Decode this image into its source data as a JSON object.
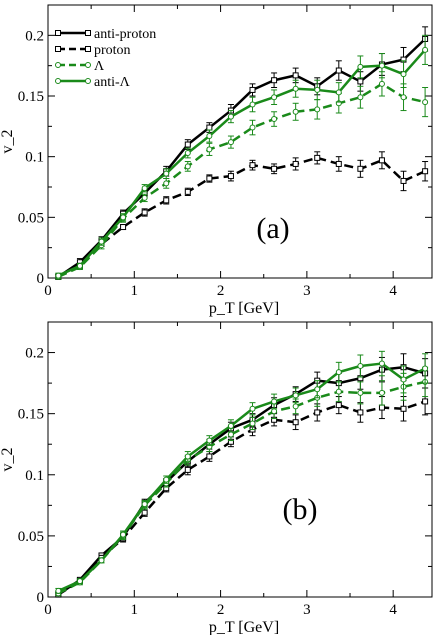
{
  "chart_data": [
    {
      "type": "line",
      "panel_label": "(a)",
      "xlabel": "p_T [GeV]",
      "ylabel": "v_2",
      "xlim": [
        0,
        4.45
      ],
      "ylim": [
        0,
        0.225
      ],
      "x_ticks": [
        0,
        1,
        2,
        3,
        4
      ],
      "x_tick_labels": [
        "0",
        "1",
        "2",
        "3",
        "4"
      ],
      "y_ticks": [
        0,
        0.05,
        0.1,
        0.15,
        0.2
      ],
      "y_tick_labels": [
        "0",
        "0.05",
        "0.1",
        "0.15",
        "0.2"
      ],
      "legend": "top-left",
      "series": [
        {
          "name": "anti-proton",
          "color": "#000000",
          "dash": "solid",
          "marker": "square",
          "x": [
            0.12,
            0.37,
            0.62,
            0.87,
            1.12,
            1.37,
            1.62,
            1.87,
            2.12,
            2.37,
            2.62,
            2.87,
            3.12,
            3.37,
            3.62,
            3.87,
            4.12,
            4.37
          ],
          "y": [
            0.001,
            0.013,
            0.031,
            0.053,
            0.07,
            0.088,
            0.11,
            0.124,
            0.138,
            0.155,
            0.163,
            0.167,
            0.158,
            0.171,
            0.162,
            0.176,
            0.18,
            0.197
          ],
          "err": [
            0.002,
            0.003,
            0.003,
            0.003,
            0.003,
            0.004,
            0.004,
            0.004,
            0.005,
            0.005,
            0.006,
            0.006,
            0.007,
            0.008,
            0.008,
            0.009,
            0.01,
            0.01
          ]
        },
        {
          "name": "proton",
          "color": "#000000",
          "dash": "dashed",
          "marker": "square",
          "x": [
            0.12,
            0.37,
            0.62,
            0.87,
            1.12,
            1.37,
            1.62,
            1.87,
            2.12,
            2.37,
            2.62,
            2.87,
            3.12,
            3.37,
            3.62,
            3.87,
            4.12,
            4.37
          ],
          "y": [
            0.001,
            0.01,
            0.028,
            0.042,
            0.054,
            0.064,
            0.071,
            0.082,
            0.084,
            0.093,
            0.09,
            0.094,
            0.099,
            0.094,
            0.09,
            0.097,
            0.08,
            0.088
          ],
          "err": [
            0.002,
            0.002,
            0.002,
            0.002,
            0.003,
            0.003,
            0.003,
            0.003,
            0.004,
            0.004,
            0.004,
            0.005,
            0.005,
            0.006,
            0.007,
            0.007,
            0.008,
            0.008
          ]
        },
        {
          "name": "Λ",
          "color": "#1a8a1a",
          "dash": "dashed",
          "marker": "circle",
          "x": [
            0.12,
            0.37,
            0.62,
            0.87,
            1.12,
            1.37,
            1.62,
            1.87,
            2.12,
            2.37,
            2.62,
            2.87,
            3.12,
            3.37,
            3.62,
            3.87,
            4.12,
            4.37
          ],
          "y": [
            0.001,
            0.009,
            0.027,
            0.049,
            0.066,
            0.078,
            0.092,
            0.106,
            0.112,
            0.124,
            0.131,
            0.137,
            0.139,
            0.144,
            0.149,
            0.16,
            0.149,
            0.145
          ],
          "err": [
            0.002,
            0.002,
            0.003,
            0.003,
            0.003,
            0.004,
            0.004,
            0.005,
            0.005,
            0.006,
            0.006,
            0.007,
            0.008,
            0.008,
            0.009,
            0.01,
            0.011,
            0.012
          ]
        },
        {
          "name": "anti-Λ",
          "color": "#1a8a1a",
          "dash": "solid",
          "marker": "circle",
          "x": [
            0.12,
            0.37,
            0.62,
            0.87,
            1.12,
            1.37,
            1.62,
            1.87,
            2.12,
            2.37,
            2.62,
            2.87,
            3.12,
            3.37,
            3.62,
            3.87,
            4.12,
            4.37
          ],
          "y": [
            0.002,
            0.01,
            0.03,
            0.05,
            0.074,
            0.086,
            0.103,
            0.117,
            0.133,
            0.143,
            0.149,
            0.156,
            0.155,
            0.153,
            0.174,
            0.175,
            0.168,
            0.188
          ],
          "err": [
            0.002,
            0.002,
            0.003,
            0.003,
            0.003,
            0.004,
            0.004,
            0.005,
            0.005,
            0.006,
            0.006,
            0.007,
            0.008,
            0.008,
            0.009,
            0.01,
            0.011,
            0.012
          ]
        }
      ]
    },
    {
      "type": "line",
      "panel_label": "(b)",
      "xlabel": "p_T [GeV]",
      "ylabel": "v_2",
      "xlim": [
        0,
        4.45
      ],
      "ylim": [
        0,
        0.225
      ],
      "x_ticks": [
        0,
        1,
        2,
        3,
        4
      ],
      "x_tick_labels": [
        "0",
        "1",
        "2",
        "3",
        "4"
      ],
      "y_ticks": [
        0,
        0.05,
        0.1,
        0.15,
        0.2
      ],
      "y_tick_labels": [
        "0",
        "0.05",
        "0.1",
        "0.15",
        "0.2"
      ],
      "series": [
        {
          "name": "anti-proton",
          "color": "#000000",
          "dash": "solid",
          "marker": "square",
          "x": [
            0.12,
            0.37,
            0.62,
            0.87,
            1.12,
            1.37,
            1.62,
            1.87,
            2.12,
            2.37,
            2.62,
            2.87,
            3.12,
            3.37,
            3.62,
            3.87,
            4.12,
            4.37
          ],
          "y": [
            0.002,
            0.014,
            0.034,
            0.049,
            0.077,
            0.094,
            0.111,
            0.125,
            0.138,
            0.145,
            0.157,
            0.166,
            0.177,
            0.175,
            0.179,
            0.186,
            0.188,
            0.183
          ],
          "err": [
            0.002,
            0.002,
            0.002,
            0.003,
            0.003,
            0.003,
            0.004,
            0.004,
            0.005,
            0.005,
            0.006,
            0.006,
            0.007,
            0.008,
            0.009,
            0.01,
            0.011,
            0.012
          ]
        },
        {
          "name": "proton",
          "color": "#000000",
          "dash": "dashed",
          "marker": "square",
          "x": [
            0.12,
            0.37,
            0.62,
            0.87,
            1.12,
            1.37,
            1.62,
            1.87,
            2.12,
            2.37,
            2.62,
            2.87,
            3.12,
            3.37,
            3.62,
            3.87,
            4.12,
            4.37
          ],
          "y": [
            0.002,
            0.013,
            0.032,
            0.048,
            0.069,
            0.089,
            0.104,
            0.115,
            0.127,
            0.137,
            0.145,
            0.143,
            0.151,
            0.157,
            0.151,
            0.155,
            0.154,
            0.16
          ],
          "err": [
            0.002,
            0.002,
            0.002,
            0.003,
            0.003,
            0.003,
            0.004,
            0.004,
            0.004,
            0.005,
            0.005,
            0.006,
            0.007,
            0.007,
            0.008,
            0.009,
            0.01,
            0.011
          ]
        },
        {
          "name": "Λ",
          "color": "#1a8a1a",
          "dash": "dashed",
          "marker": "circle",
          "x": [
            0.12,
            0.37,
            0.62,
            0.87,
            1.12,
            1.37,
            1.62,
            1.87,
            2.12,
            2.37,
            2.62,
            2.87,
            3.12,
            3.37,
            3.62,
            3.87,
            4.12,
            4.37
          ],
          "y": [
            0.003,
            0.012,
            0.03,
            0.05,
            0.075,
            0.093,
            0.112,
            0.123,
            0.133,
            0.142,
            0.152,
            0.156,
            0.163,
            0.168,
            0.167,
            0.167,
            0.172,
            0.176
          ],
          "err": [
            0.002,
            0.002,
            0.002,
            0.003,
            0.003,
            0.003,
            0.004,
            0.004,
            0.005,
            0.005,
            0.006,
            0.006,
            0.007,
            0.008,
            0.009,
            0.01,
            0.011,
            0.012
          ]
        },
        {
          "name": "anti-Λ",
          "color": "#1a8a1a",
          "dash": "solid",
          "marker": "circle",
          "x": [
            0.12,
            0.37,
            0.62,
            0.87,
            1.12,
            1.37,
            1.62,
            1.87,
            2.12,
            2.37,
            2.62,
            2.87,
            3.12,
            3.37,
            3.62,
            3.87,
            4.12,
            4.37
          ],
          "y": [
            0.005,
            0.013,
            0.03,
            0.051,
            0.076,
            0.096,
            0.115,
            0.128,
            0.14,
            0.154,
            0.16,
            0.165,
            0.17,
            0.184,
            0.189,
            0.191,
            0.178,
            0.187
          ],
          "err": [
            0.002,
            0.002,
            0.002,
            0.003,
            0.003,
            0.003,
            0.004,
            0.004,
            0.005,
            0.005,
            0.006,
            0.006,
            0.007,
            0.008,
            0.009,
            0.01,
            0.011,
            0.012
          ]
        }
      ]
    }
  ]
}
